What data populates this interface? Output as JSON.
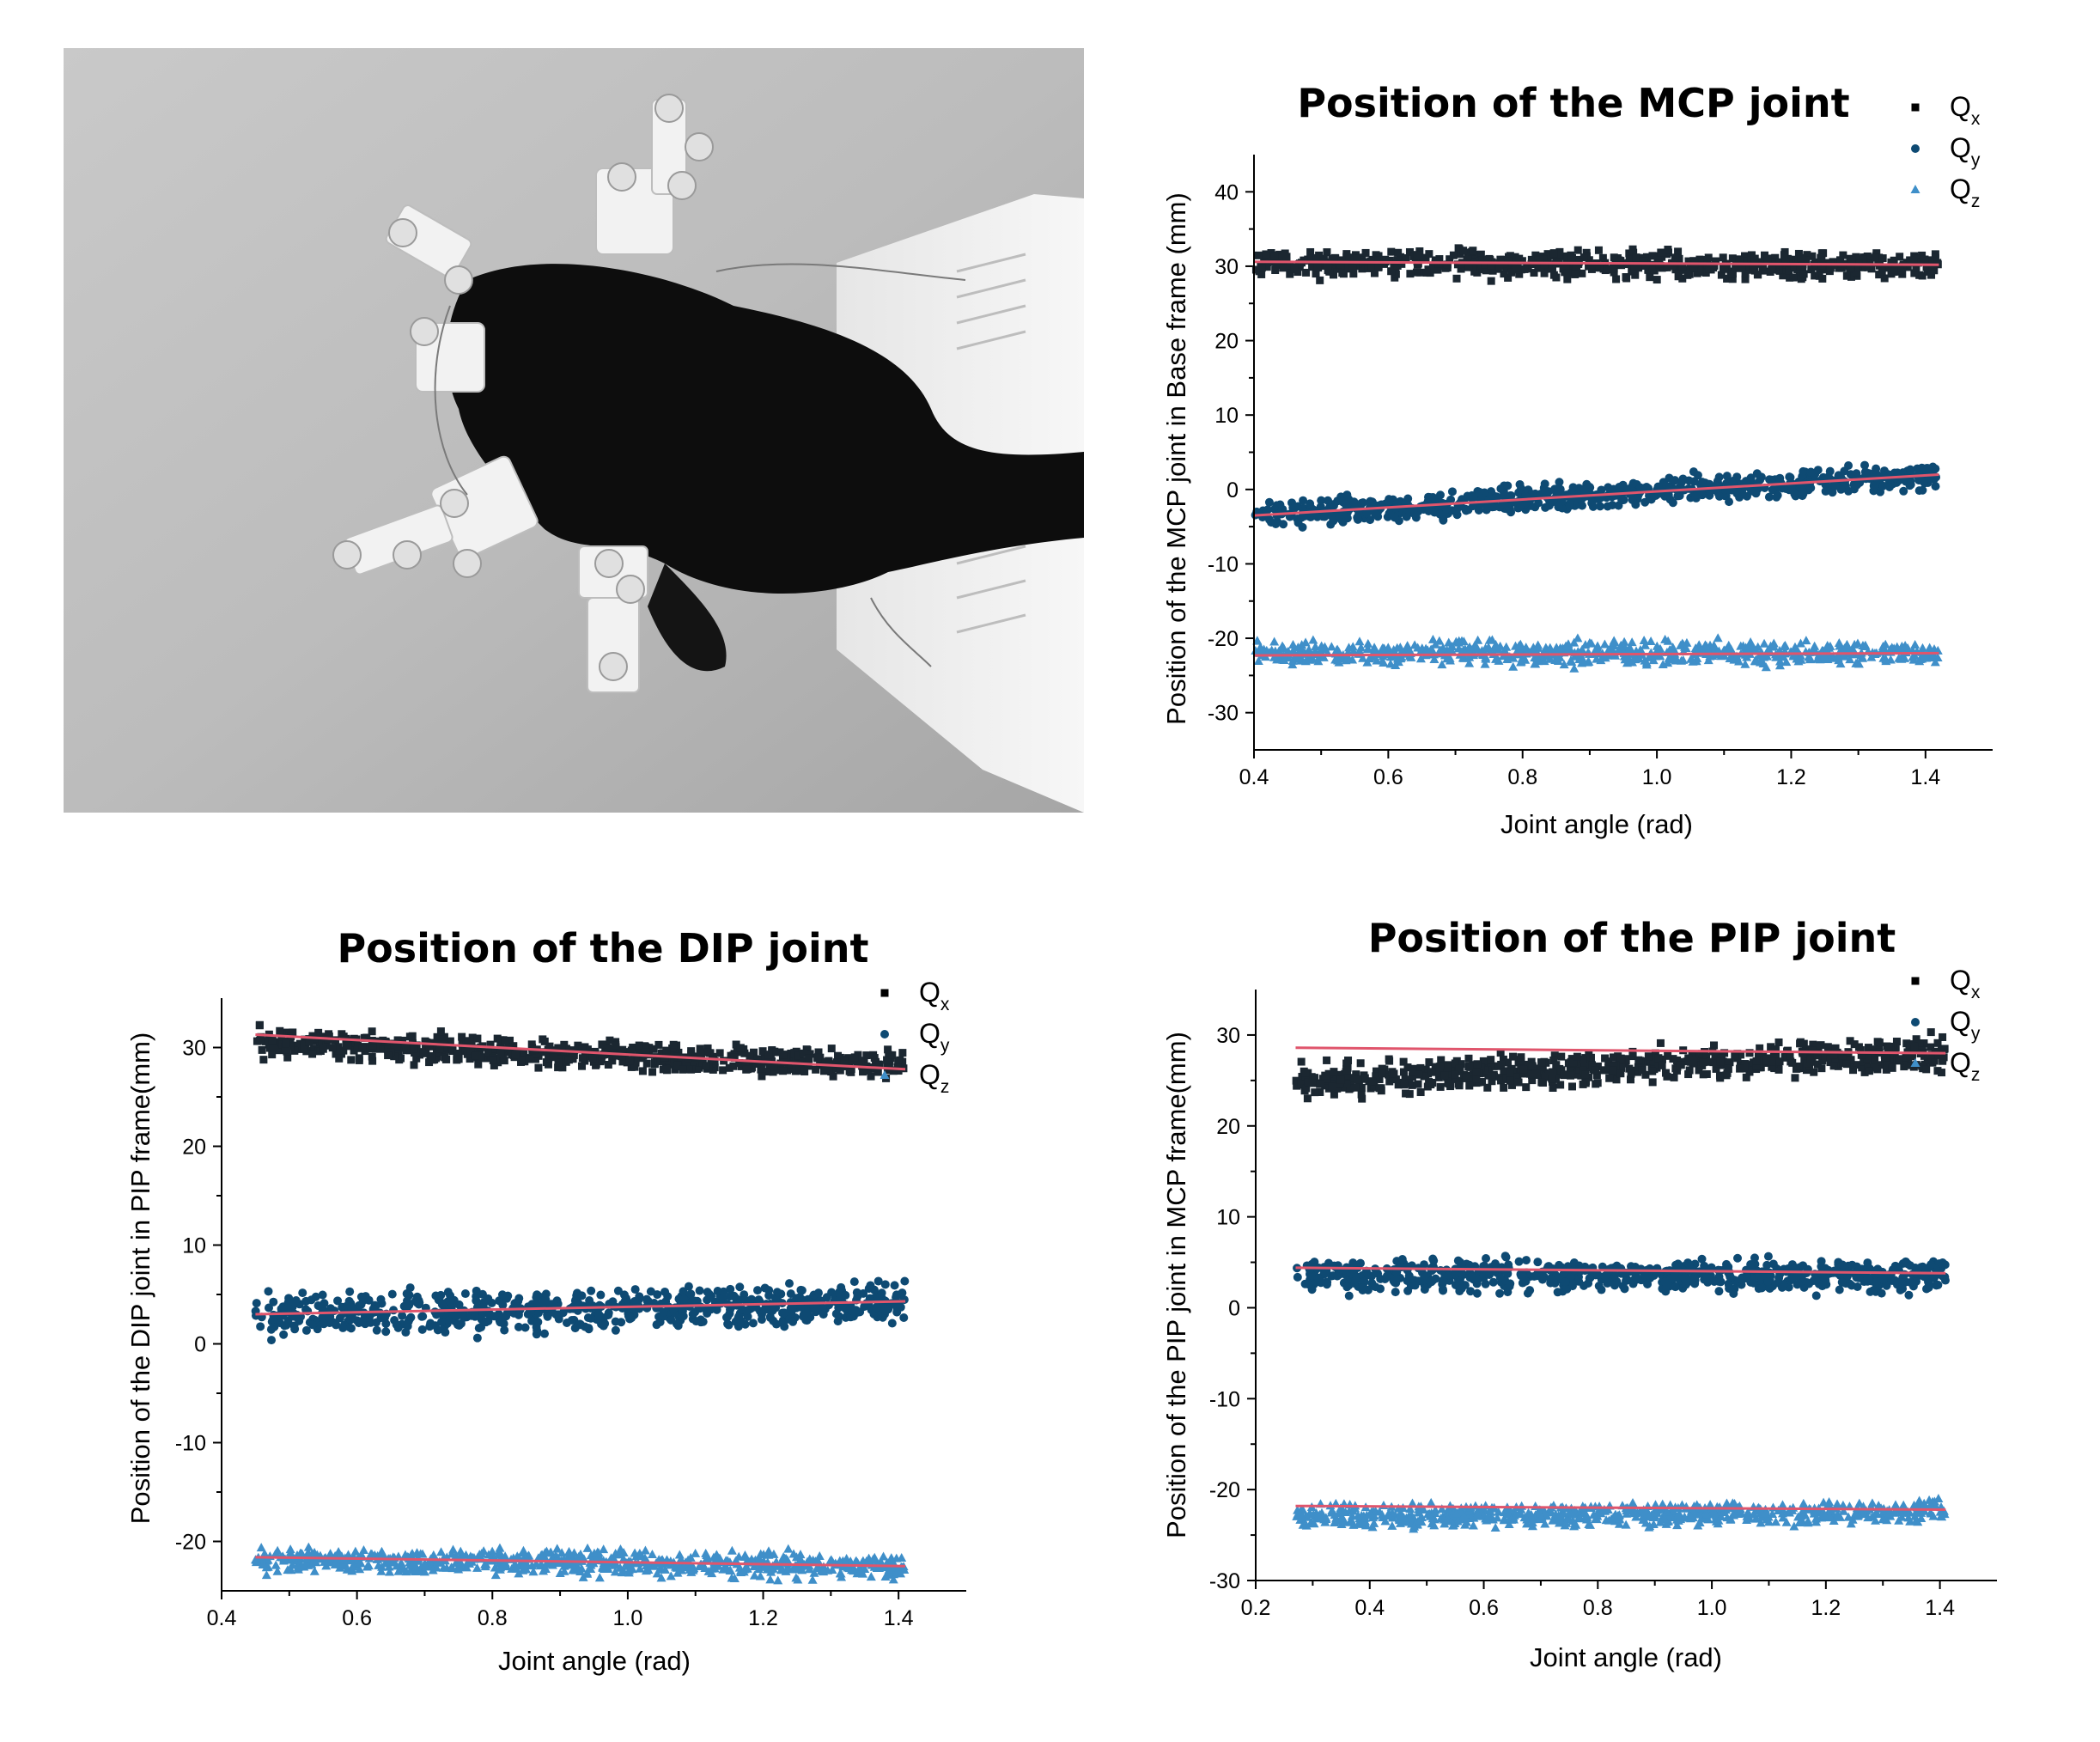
{
  "colors": {
    "qx": "#1b2731",
    "qy": "#0e4a73",
    "qz": "#3f8fc9",
    "fit": "#e0556c",
    "axis": "#000000"
  },
  "legend": [
    {
      "main": "Q",
      "sub": "x",
      "marker": "square",
      "series": "qx"
    },
    {
      "main": "Q",
      "sub": "y",
      "marker": "circle",
      "series": "qy"
    },
    {
      "main": "Q",
      "sub": "z",
      "marker": "triangle",
      "series": "qz"
    }
  ],
  "photo": {
    "description_icon": "hand-exoskeleton-photo"
  },
  "chart_data": [
    {
      "id": "mcp",
      "type": "scatter",
      "title": "Position of the MCP joint",
      "xlabel": "Joint angle (rad)",
      "ylabel": "Position of the MCP joint in Base frame (mm)",
      "xlim": [
        0.4,
        1.5
      ],
      "ylim": [
        -35,
        45
      ],
      "xticks": [
        0.4,
        0.6,
        0.8,
        1.0,
        1.2,
        1.4
      ],
      "yticks": [
        -30,
        -20,
        -10,
        0,
        10,
        20,
        30,
        40
      ],
      "grid": false,
      "legend_position": "top-right",
      "series": [
        {
          "key": "qx",
          "marker": "square",
          "x_range": [
            0.4,
            1.42
          ],
          "center_start": 30.5,
          "center_end": 30.0,
          "spread": 1.8,
          "fit": [
            [
              0.4,
              30.6
            ],
            [
              1.42,
              30.2
            ]
          ]
        },
        {
          "key": "qy",
          "marker": "circle",
          "x_range": [
            0.4,
            1.42
          ],
          "center_start": -3.5,
          "center_end": 2.0,
          "spread": 1.8,
          "fit": [
            [
              0.4,
              -3.5
            ],
            [
              1.42,
              2.0
            ]
          ]
        },
        {
          "key": "qz",
          "marker": "triangle",
          "x_range": [
            0.4,
            1.42
          ],
          "center_start": -22.0,
          "center_end": -22.0,
          "spread": 1.6,
          "fit": [
            [
              0.4,
              -22.3
            ],
            [
              1.42,
              -22.0
            ]
          ]
        }
      ]
    },
    {
      "id": "dip",
      "type": "scatter",
      "title": "Position of the DIP joint",
      "xlabel": "Joint angle (rad)",
      "ylabel": "Position of the DIP joint in PIP frame(mm)",
      "xlim": [
        0.4,
        1.5
      ],
      "ylim": [
        -25,
        35
      ],
      "xticks": [
        0.4,
        0.6,
        0.8,
        1.0,
        1.2,
        1.4
      ],
      "yticks": [
        -20,
        -10,
        0,
        10,
        20,
        30
      ],
      "grid": false,
      "legend_position": "top-right",
      "series": [
        {
          "key": "qx",
          "marker": "square",
          "x_range": [
            0.45,
            1.41
          ],
          "center_start": 30.5,
          "center_end": 28.0,
          "spread": 1.5,
          "fit": [
            [
              0.45,
              31.3
            ],
            [
              1.41,
              27.8
            ]
          ]
        },
        {
          "key": "qy",
          "marker": "circle",
          "x_range": [
            0.45,
            1.41
          ],
          "center_start": 3.0,
          "center_end": 4.0,
          "spread": 2.2,
          "fit": [
            [
              0.45,
              3.0
            ],
            [
              1.41,
              4.3
            ]
          ]
        },
        {
          "key": "qz",
          "marker": "triangle",
          "x_range": [
            0.45,
            1.41
          ],
          "center_start": -21.8,
          "center_end": -22.6,
          "spread": 1.3,
          "fit": [
            [
              0.45,
              -21.6
            ],
            [
              1.41,
              -22.5
            ]
          ]
        }
      ]
    },
    {
      "id": "pip",
      "type": "scatter",
      "title": "Position of the PIP joint",
      "xlabel": "Joint angle (rad)",
      "ylabel": "Position of the PIP joint in MCP frame(mm)",
      "xlim": [
        0.2,
        1.5
      ],
      "ylim": [
        -30,
        35
      ],
      "xticks": [
        0.2,
        0.4,
        0.6,
        0.8,
        1.0,
        1.2,
        1.4
      ],
      "yticks": [
        -30,
        -20,
        -10,
        0,
        10,
        20,
        30
      ],
      "grid": false,
      "legend_position": "top-right",
      "series": [
        {
          "key": "qx",
          "marker": "square",
          "x_range": [
            0.27,
            1.41
          ],
          "center_start": 25.0,
          "center_end": 28.0,
          "spread": 1.8,
          "fit": [
            [
              0.27,
              28.6
            ],
            [
              1.41,
              28.0
            ]
          ]
        },
        {
          "key": "qy",
          "marker": "circle",
          "x_range": [
            0.27,
            1.41
          ],
          "center_start": 3.5,
          "center_end": 3.5,
          "spread": 1.9,
          "fit": [
            [
              0.27,
              4.4
            ],
            [
              1.41,
              3.8
            ]
          ]
        },
        {
          "key": "qz",
          "marker": "triangle",
          "x_range": [
            0.27,
            1.41
          ],
          "center_start": -23.0,
          "center_end": -22.5,
          "spread": 1.3,
          "fit": [
            [
              0.27,
              -21.8
            ],
            [
              1.41,
              -22.2
            ]
          ]
        }
      ]
    }
  ]
}
